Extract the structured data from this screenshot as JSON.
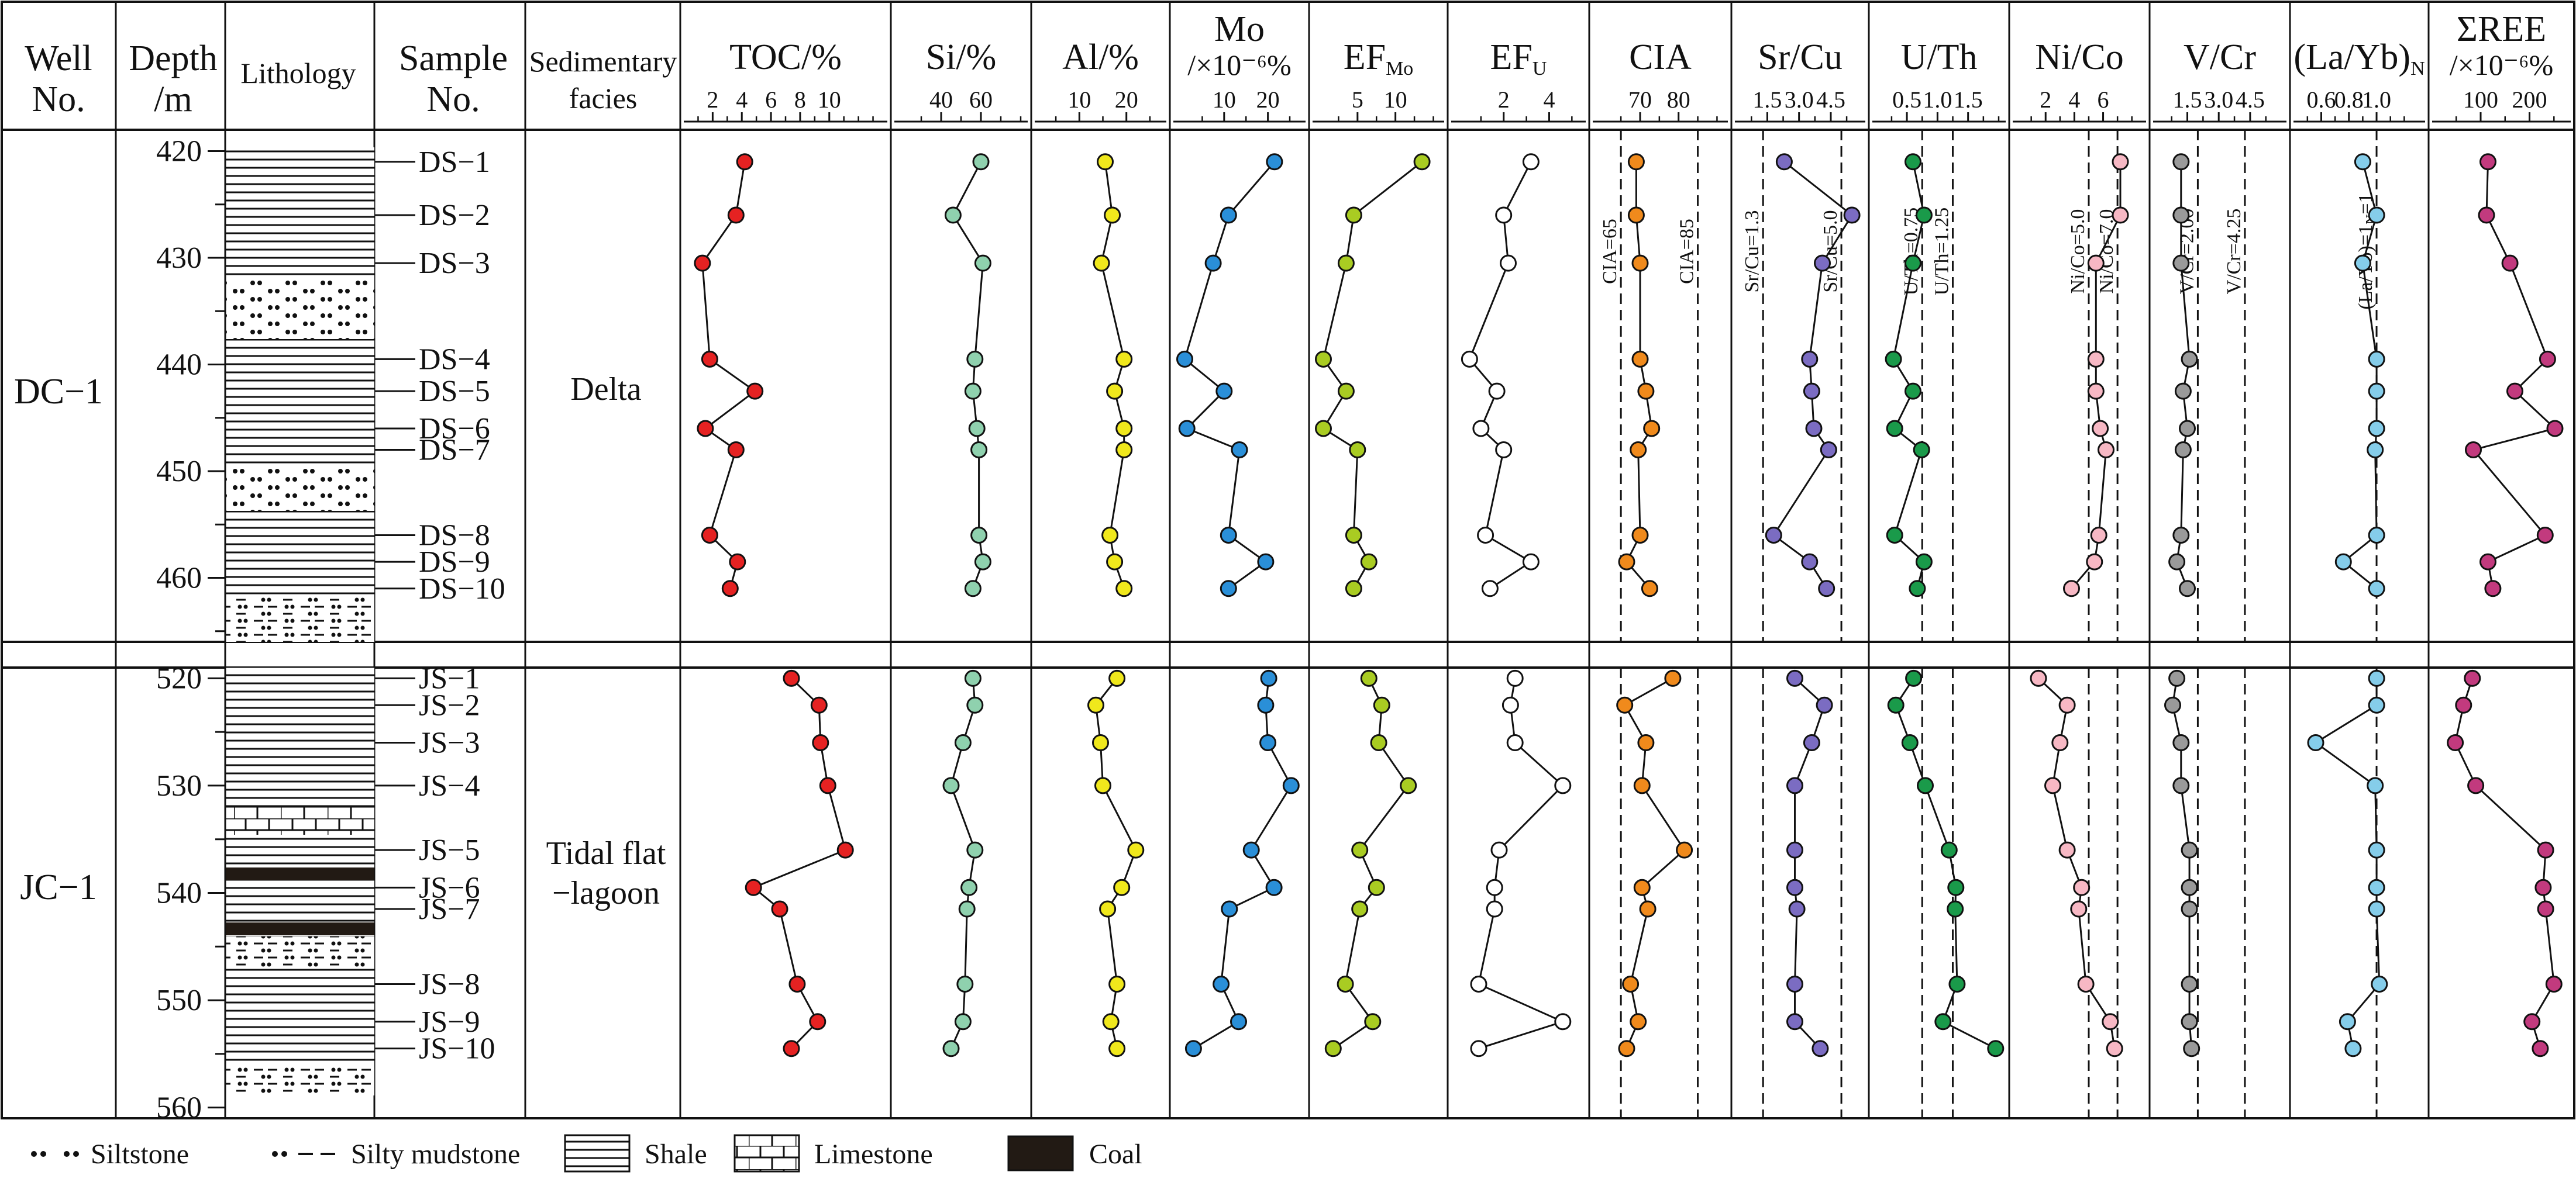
{
  "headers": {
    "well": [
      "Well",
      "No."
    ],
    "depth": [
      "Depth",
      "/m"
    ],
    "lithology": "Lithology",
    "sample": [
      "Sample",
      "No."
    ],
    "facies": [
      "Sedimentary",
      "facies"
    ]
  },
  "wells": [
    {
      "name": "DC−1",
      "facies": [
        "Delta"
      ],
      "samples": [
        "DS−1",
        "DS−2",
        "DS−3",
        "DS−4",
        "DS−5",
        "DS−6",
        "DS−7",
        "DS−8",
        "DS−9",
        "DS−10"
      ],
      "depth_ticks": [
        "420",
        "430",
        "440",
        "450",
        "460"
      ]
    },
    {
      "name": "JC−1",
      "facies": [
        "Tidal flat",
        "−lagoon"
      ],
      "samples": [
        "JS−1",
        "JS−2",
        "JS−3",
        "JS−4",
        "JS−5",
        "JS−6",
        "JS−7",
        "JS−8",
        "JS−9",
        "JS−10"
      ],
      "depth_ticks": [
        "520",
        "530",
        "540",
        "550",
        "560"
      ]
    }
  ],
  "chart_data": {
    "type": "line",
    "orientation": "vertical-depth-profile",
    "depth_unit": "m",
    "well_DC1_depths": [
      421,
      426,
      430.5,
      439.5,
      442.5,
      446,
      448,
      456,
      458.5,
      461
    ],
    "well_JC1_depths": [
      520,
      522.5,
      526,
      530,
      536,
      539.5,
      541.5,
      548.5,
      552,
      554.5
    ],
    "well_DC1_ylim": [
      418,
      466
    ],
    "well_JC1_ylim": [
      519,
      561
    ],
    "panels": [
      {
        "title": "TOC/%",
        "ticks": [
          "2",
          "4",
          "6",
          "8",
          "10"
        ],
        "xlim": [
          0.5,
          13.5
        ],
        "color": "#e52222",
        "DC1": [
          4.2,
          3.6,
          1.3,
          1.8,
          4.9,
          1.5,
          3.6,
          1.8,
          3.7,
          3.2
        ],
        "JC1": [
          7.4,
          9.3,
          9.4,
          9.9,
          11.1,
          4.8,
          6.6,
          7.8,
          9.2,
          7.4
        ]
      },
      {
        "title": "Si/%",
        "ticks": [
          "40",
          "60"
        ],
        "xlim": [
          20,
          80
        ],
        "color": "#8fd1ae",
        "DC1": [
          60,
          46,
          61,
          57,
          56,
          58,
          59,
          59,
          61,
          56
        ],
        "JC1": [
          56,
          57,
          51,
          45,
          57,
          54,
          53,
          52,
          51,
          45
        ]
      },
      {
        "title": "Al/%",
        "ticks": [
          "10",
          "20"
        ],
        "xlim": [
          2,
          27
        ],
        "color": "#f0e81c",
        "DC1": [
          15.5,
          17,
          14.7,
          19.5,
          17.5,
          19.5,
          19.5,
          16.5,
          17.5,
          19.5
        ],
        "JC1": [
          18,
          13.5,
          14.5,
          15,
          22,
          19,
          16,
          18,
          16.7,
          18
        ]
      },
      {
        "title": "Mo",
        "subtitle": "/×10⁻⁶%",
        "ticks": [
          "10",
          "20"
        ],
        "xlim": [
          0,
          27
        ],
        "color": "#2a8fd8",
        "DC1": [
          21.5,
          11,
          7.5,
          1,
          10,
          1.5,
          13.5,
          11,
          19.5,
          11
        ],
        "JC1": [
          20.2,
          19.5,
          20,
          25.3,
          16.2,
          21.4,
          11.2,
          9.3,
          13.3,
          3
        ]
      },
      {
        "title": "EF",
        "title_sub": "Mo",
        "ticks": [
          "5",
          "10"
        ],
        "xlim": [
          0,
          15.5
        ],
        "color": "#a9cc22",
        "DC1": [
          13.5,
          4.5,
          3.5,
          0.5,
          3.5,
          0.5,
          5,
          4.5,
          6.5,
          4.5
        ],
        "JC1": [
          6.5,
          8.2,
          7.8,
          11.7,
          5.3,
          7.5,
          5.3,
          3.4,
          7,
          1.8
        ]
      },
      {
        "title": "EF",
        "title_sub": "U",
        "ticks": [
          "2",
          "4"
        ],
        "xlim": [
          0,
          5.3
        ],
        "color": "#ffffff",
        "DC1": [
          3.2,
          2,
          2.2,
          0.5,
          1.7,
          1,
          2,
          1.2,
          3.2,
          1.4
        ],
        "JC1": [
          2.5,
          2.3,
          2.5,
          4.6,
          1.8,
          1.6,
          1.6,
          0.9,
          4.6,
          0.9
        ]
      },
      {
        "title": "CIA",
        "ticks": [
          "70",
          "80"
        ],
        "xlim": [
          59.5,
          91
        ],
        "color": "#f08a1c",
        "DC1": [
          69,
          69,
          70,
          70,
          71.5,
          73,
          69.5,
          70,
          66.5,
          72.5
        ],
        "JC1": [
          78.5,
          66,
          71.5,
          70.5,
          81.5,
          70.5,
          72,
          67.5,
          69.5,
          66.5
        ],
        "ref_lines": [
          {
            "value": 65,
            "label": "CIA=65"
          },
          {
            "value": 85,
            "label": "CIA=85"
          }
        ]
      },
      {
        "title": "Sr/Cu",
        "ticks": [
          "1.5",
          "3.0",
          "4.5"
        ],
        "xlim": [
          0.3,
          5.8
        ],
        "color": "#7b6cc2",
        "DC1": [
          2.3,
          5.5,
          4.1,
          3.5,
          3.6,
          3.7,
          4.4,
          1.8,
          3.5,
          4.3
        ],
        "JC1": [
          2.8,
          4.2,
          3.6,
          2.8,
          2.8,
          2.8,
          2.9,
          2.8,
          2.8,
          4.0
        ],
        "ref_lines": [
          {
            "value": 1.3,
            "label": "Sr/Cu=1.3"
          },
          {
            "value": 5.0,
            "label": "Sr/Cu=5.0"
          }
        ]
      },
      {
        "title": "U/Th",
        "ticks": [
          "0.5",
          "1.0",
          "1.5"
        ],
        "xlim": [
          0.05,
          2.0
        ],
        "color": "#1a9a4a",
        "DC1": [
          0.6,
          0.78,
          0.6,
          0.28,
          0.6,
          0.3,
          0.74,
          0.3,
          0.78,
          0.67
        ],
        "JC1": [
          0.61,
          0.32,
          0.55,
          0.8,
          1.19,
          1.3,
          1.29,
          1.32,
          1.09,
          1.95
        ],
        "ref_lines": [
          {
            "value": 0.75,
            "label": "U/Th=0.75"
          },
          {
            "value": 1.25,
            "label": "U/Th=1.25"
          }
        ]
      },
      {
        "title": "Ni/Co",
        "ticks": [
          "2",
          "4",
          "6"
        ],
        "xlim": [
          0.2,
          8.5
        ],
        "color": "#f7b8c4",
        "DC1": [
          7.2,
          7.2,
          5.5,
          5.5,
          5.5,
          5.8,
          6.2,
          5.7,
          5.4,
          3.8
        ],
        "JC1": [
          1.5,
          3.5,
          3,
          2.5,
          3.5,
          4.5,
          4.3,
          4.8,
          6.5,
          6.8
        ],
        "ref_lines": [
          {
            "value": 5.0,
            "label": "Ni/Co=5.0"
          },
          {
            "value": 7.0,
            "label": "Ni/Co=7.0"
          }
        ]
      },
      {
        "title": "V/Cr",
        "ticks": [
          "1.5",
          "3.0",
          "4.5"
        ],
        "xlim": [
          0.2,
          5.9
        ],
        "color": "#9a9a9a",
        "DC1": [
          1.2,
          1.2,
          1.2,
          1.6,
          1.3,
          1.5,
          1.3,
          1.2,
          1.0,
          1.5
        ],
        "JC1": [
          1.0,
          0.8,
          1.2,
          1.2,
          1.6,
          1.6,
          1.6,
          1.6,
          1.6,
          1.7
        ],
        "ref_lines": [
          {
            "value": 2.0,
            "label": "V/Cr=2.00"
          },
          {
            "value": 4.25,
            "label": "V/Cr=4.25"
          }
        ]
      },
      {
        "title": "(La/Yb)",
        "title_sub": "N",
        "ticks": [
          "0.6",
          "0.8",
          "1.0"
        ],
        "xlim": [
          0.45,
          1.3
        ],
        "color": "#85cdea",
        "DC1": [
          0.9,
          1.0,
          0.9,
          1.0,
          1.0,
          1.0,
          0.99,
          1.0,
          0.76,
          1.0
        ],
        "JC1": [
          1.0,
          1.0,
          0.56,
          0.99,
          1.0,
          1.0,
          1.0,
          1.02,
          0.79,
          0.83
        ],
        "ref_lines": [
          {
            "value": 1.0,
            "label": "(La/Yb)N=1"
          }
        ]
      },
      {
        "title": "ΣREE",
        "subtitle": "/×10⁻⁶%",
        "ticks": [
          "100",
          "200"
        ],
        "xlim": [
          15,
          270
        ],
        "color": "#c23a7e",
        "DC1": [
          115,
          112,
          160,
          237,
          170,
          252,
          85,
          232,
          115,
          125
        ],
        "JC1": [
          83,
          65,
          48,
          90,
          233,
          228,
          233,
          250,
          205,
          222
        ]
      }
    ]
  },
  "legend": [
    {
      "pattern": "siltstone",
      "label": "Siltstone"
    },
    {
      "pattern": "silty-mudstone",
      "label": "Silty mudstone"
    },
    {
      "pattern": "shale",
      "label": "Shale"
    },
    {
      "pattern": "limestone",
      "label": "Limestone"
    },
    {
      "pattern": "coal",
      "label": "Coal"
    }
  ]
}
